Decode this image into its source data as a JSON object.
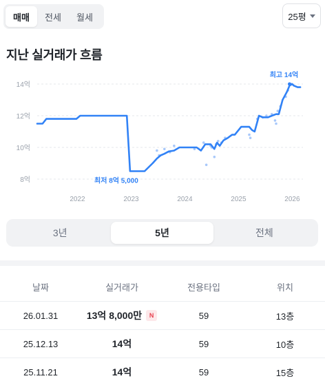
{
  "trade_tabs": [
    {
      "label": "매매",
      "active": true
    },
    {
      "label": "전세",
      "active": false
    },
    {
      "label": "월세",
      "active": false
    }
  ],
  "area_select": {
    "value": "25평",
    "icon": "chevron-down-icon"
  },
  "section_title": "지난 실거래가 흐름",
  "chart_data": {
    "type": "line",
    "title": "",
    "xlabel": "",
    "ylabel": "",
    "x_ticks": [
      "2022",
      "2023",
      "2024",
      "2025",
      "2026"
    ],
    "y_ticks": [
      "8억",
      "10억",
      "12억",
      "14억"
    ],
    "ylim": [
      8,
      14
    ],
    "xlim": [
      2021.25,
      2026.2
    ],
    "grid": true,
    "series": [
      {
        "x": [
          2021.25,
          2021.35,
          2021.42,
          2021.6,
          2021.8,
          2021.98,
          2022.05,
          2022.2,
          2022.5,
          2022.8,
          2022.9,
          2022.92,
          2022.98,
          2023.1,
          2023.15,
          2023.25,
          2023.4,
          2023.48,
          2023.55,
          2023.62,
          2023.7,
          2023.8,
          2023.9,
          2024.0,
          2024.1,
          2024.18,
          2024.22,
          2024.3,
          2024.38,
          2024.42,
          2024.48,
          2024.55,
          2024.6,
          2024.65,
          2024.72,
          2024.8,
          2024.88,
          2024.93,
          2025.05,
          2025.12,
          2025.2,
          2025.25,
          2025.3,
          2025.38,
          2025.45,
          2025.55,
          2025.62,
          2025.7,
          2025.75,
          2025.82,
          2025.9,
          2025.95,
          2026.0,
          2026.03,
          2026.1,
          2026.15
        ],
        "y": [
          11.5,
          11.5,
          11.8,
          11.8,
          11.8,
          11.8,
          12.0,
          12.0,
          12.0,
          12.0,
          12.0,
          12.0,
          8.5,
          8.5,
          8.5,
          8.5,
          9.0,
          9.3,
          9.5,
          9.6,
          9.75,
          9.8,
          10.0,
          10.0,
          10.0,
          10.0,
          10.0,
          9.8,
          10.2,
          10.2,
          10.2,
          9.9,
          10.3,
          10.1,
          10.45,
          10.6,
          10.8,
          10.8,
          11.3,
          11.3,
          11.3,
          11.1,
          11.0,
          12.0,
          11.9,
          11.9,
          12.0,
          12.1,
          12.1,
          13.0,
          13.5,
          13.9,
          14.0,
          13.9,
          13.8,
          13.8
        ]
      }
    ],
    "scatter": {
      "x": [
        2023.48,
        2023.52,
        2023.62,
        2023.72,
        2023.8,
        2024.18,
        2024.35,
        2024.4,
        2024.48,
        2024.5,
        2024.55,
        2024.58,
        2024.62,
        2024.68,
        2024.75,
        2025.2,
        2025.22,
        2025.35,
        2025.45,
        2025.52,
        2025.62,
        2025.68,
        2025.7,
        2025.73,
        2025.78,
        2025.88,
        2025.92,
        2025.98
      ],
      "y": [
        9.8,
        9.5,
        9.9,
        9.7,
        10.1,
        9.9,
        10.3,
        8.9,
        10.1,
        10.0,
        9.4,
        10.2,
        10.4,
        10.3,
        10.6,
        10.8,
        10.6,
        11.8,
        11.9,
        12.0,
        12.1,
        11.7,
        11.5,
        12.3,
        12.6,
        13.2,
        13.6,
        14.0
      ]
    },
    "annotations": [
      {
        "label": "최고 14억",
        "x": 2025.95,
        "y": 14.0
      },
      {
        "label": "최저 8억 5,000",
        "x": 2022.98,
        "y": 8.5
      }
    ],
    "colors": {
      "line": "#3182f6",
      "scatter": "#a8c8fa",
      "grid": "#e5e7eb",
      "tick": "#9aa1ab"
    }
  },
  "range_tabs": [
    {
      "label": "3년",
      "active": false
    },
    {
      "label": "5년",
      "active": true
    },
    {
      "label": "전체",
      "active": false
    }
  ],
  "table": {
    "headers": [
      "날짜",
      "실거래가",
      "전용타입",
      "위치"
    ],
    "rows": [
      {
        "date": "26.01.31",
        "price": "13억 8,000만",
        "badge": "N",
        "type": "59",
        "floor": "13층"
      },
      {
        "date": "25.12.13",
        "price": "14억",
        "badge": "",
        "type": "59",
        "floor": "10층"
      },
      {
        "date": "25.11.21",
        "price": "14억",
        "badge": "",
        "type": "59",
        "floor": "15층"
      }
    ]
  }
}
